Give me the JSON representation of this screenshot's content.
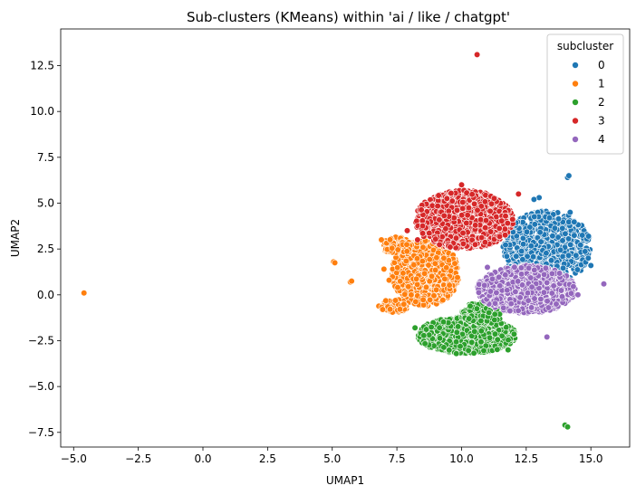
{
  "chart_data": {
    "type": "scatter",
    "title": "Sub-clusters (KMeans) within 'ai / like / chatgpt'",
    "xlabel": "UMAP1",
    "ylabel": "UMAP2",
    "xlim": [
      -5.5,
      16.5
    ],
    "ylim": [
      -8.3,
      14.5
    ],
    "xticks": [
      -5.0,
      -2.5,
      0.0,
      2.5,
      5.0,
      7.5,
      10.0,
      12.5,
      15.0
    ],
    "xtick_labels": [
      "−5.0",
      "−2.5",
      "0.0",
      "2.5",
      "5.0",
      "7.5",
      "10.0",
      "12.5",
      "15.0"
    ],
    "yticks": [
      -7.5,
      -5.0,
      -2.5,
      0.0,
      2.5,
      5.0,
      7.5,
      10.0,
      12.5
    ],
    "ytick_labels": [
      "−7.5",
      "−5.0",
      "−2.5",
      "0.0",
      "2.5",
      "5.0",
      "7.5",
      "10.0",
      "12.5"
    ],
    "grid": false,
    "legend": {
      "title": "subcluster",
      "placement": "top-right",
      "entries": [
        "0",
        "1",
        "2",
        "3",
        "4"
      ]
    },
    "series": [
      {
        "name": "0",
        "color": "#1f77b4",
        "regions": [
          {
            "cx": 13.3,
            "cy": 2.6,
            "rx": 1.7,
            "ry": 2.0,
            "count": 900
          }
        ],
        "points": [
          [
            14.1,
            6.4
          ],
          [
            14.15,
            6.5
          ],
          [
            13.0,
            5.3
          ],
          [
            12.8,
            5.2
          ],
          [
            15.0,
            1.6
          ],
          [
            14.9,
            2.0
          ],
          [
            14.2,
            4.5
          ]
        ]
      },
      {
        "name": "1",
        "color": "#ff7f0e",
        "regions": [
          {
            "cx": 8.6,
            "cy": 1.2,
            "rx": 1.3,
            "ry": 1.8,
            "count": 1000
          },
          {
            "cx": 7.5,
            "cy": 2.7,
            "rx": 0.6,
            "ry": 0.45,
            "count": 90
          },
          {
            "cx": 7.4,
            "cy": -0.6,
            "rx": 0.6,
            "ry": 0.35,
            "count": 90
          }
        ],
        "points": [
          [
            -4.6,
            0.1
          ],
          [
            5.05,
            1.8
          ],
          [
            5.1,
            1.75
          ],
          [
            5.7,
            0.7
          ],
          [
            5.75,
            0.75
          ],
          [
            6.9,
            3.0
          ],
          [
            7.0,
            1.4
          ],
          [
            6.95,
            -0.8
          ],
          [
            7.2,
            0.8
          ]
        ]
      },
      {
        "name": "2",
        "color": "#2ca02c",
        "regions": [
          {
            "cx": 10.2,
            "cy": -2.2,
            "rx": 1.9,
            "ry": 1.0,
            "count": 1000
          },
          {
            "cx": 10.8,
            "cy": -1.0,
            "rx": 0.8,
            "ry": 0.6,
            "count": 150
          }
        ],
        "points": [
          [
            14.0,
            -7.1
          ],
          [
            14.1,
            -7.2
          ],
          [
            8.2,
            -1.8
          ],
          [
            11.8,
            -3.0
          ],
          [
            9.8,
            -3.2
          ]
        ]
      },
      {
        "name": "3",
        "color": "#d62728",
        "regions": [
          {
            "cx": 10.1,
            "cy": 4.1,
            "rx": 1.9,
            "ry": 1.6,
            "count": 1100
          }
        ],
        "points": [
          [
            10.6,
            13.1
          ],
          [
            7.9,
            3.5
          ],
          [
            8.3,
            3.0
          ],
          [
            12.2,
            5.5
          ],
          [
            10.0,
            6.0
          ]
        ]
      },
      {
        "name": "4",
        "color": "#9467bd",
        "regions": [
          {
            "cx": 12.5,
            "cy": 0.3,
            "rx": 1.9,
            "ry": 1.3,
            "count": 1000
          }
        ],
        "points": [
          [
            15.5,
            0.6
          ],
          [
            13.3,
            -2.3
          ],
          [
            14.5,
            0.0
          ],
          [
            11.0,
            1.5
          ]
        ]
      }
    ]
  }
}
